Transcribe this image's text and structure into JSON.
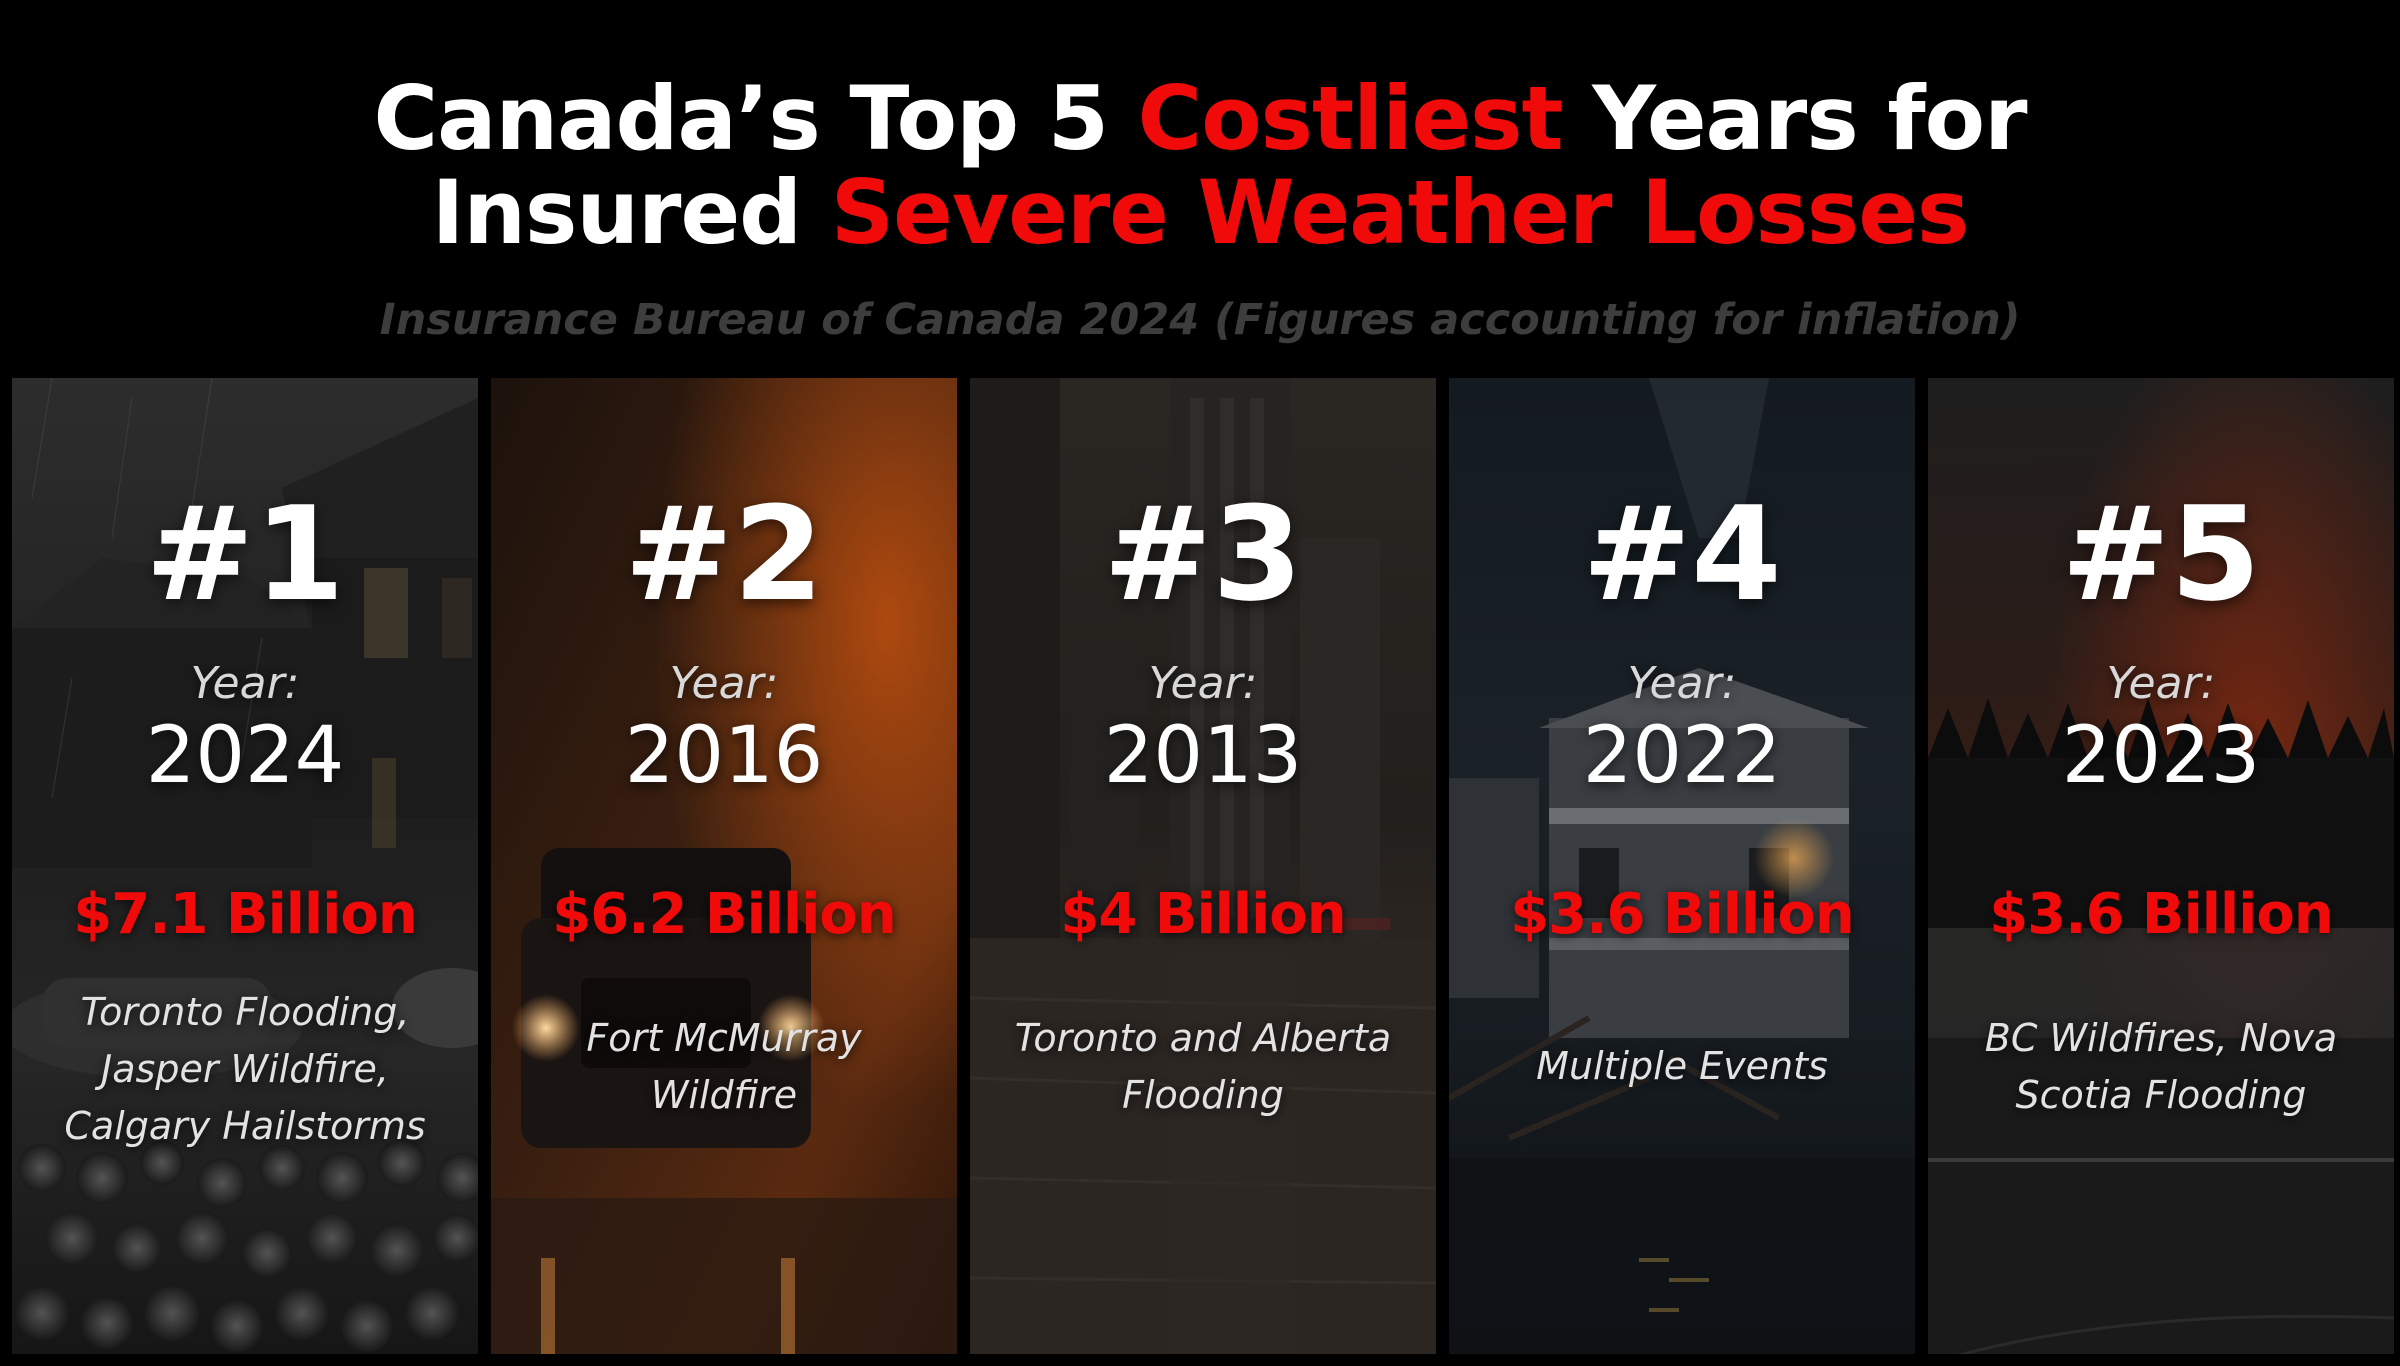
{
  "header": {
    "title_line1_a": "Canada’s Top 5 ",
    "title_line1_accent": "Costliest",
    "title_line1_b": " Years for",
    "title_line2_a": "Insured ",
    "title_line2_accent": "Severe Weather Losses",
    "subtitle": "Insurance Bureau of Canada 2024 (Figures accounting for inflation)"
  },
  "colors": {
    "accent": "#f00a0a",
    "background": "#000000"
  },
  "panels": [
    {
      "rank": "#1",
      "year_label": "Year:",
      "year": "2024",
      "amount": "$7.1 Billion",
      "description": [
        "Toronto Flooding,",
        "Jasper Wildfire,",
        "Calgary Hailstorms"
      ]
    },
    {
      "rank": "#2",
      "year_label": "Year:",
      "year": "2016",
      "amount": "$6.2 Billion",
      "description": [
        "Fort McMurray",
        "Wildfire"
      ]
    },
    {
      "rank": "#3",
      "year_label": "Year:",
      "year": "2013",
      "amount": "$4 Billion",
      "description": [
        "Toronto and Alberta",
        "Flooding"
      ]
    },
    {
      "rank": "#4",
      "year_label": "Year:",
      "year": "2022",
      "amount": "$3.6 Billion",
      "description": [
        "Multiple Events"
      ]
    },
    {
      "rank": "#5",
      "year_label": "Year:",
      "year": "2023",
      "amount": "$3.6 Billion",
      "description": [
        "BC Wildfires, Nova",
        "Scotia Flooding"
      ]
    }
  ]
}
